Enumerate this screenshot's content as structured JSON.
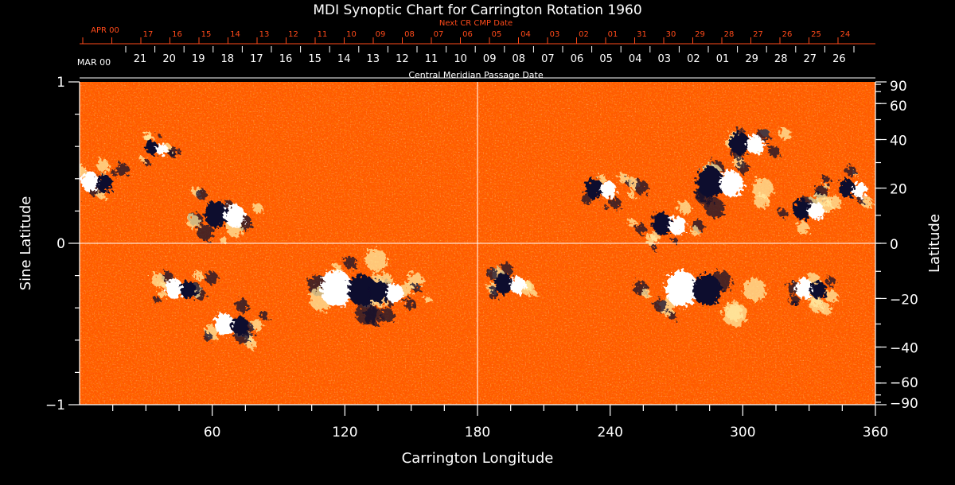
{
  "chart_data": {
    "type": "heatmap",
    "title": "MDI Synoptic Chart for Carrington Rotation 1960",
    "xlabel": "Carrington Longitude",
    "ylabel_left": "Sine Latitude",
    "ylabel_right": "Latitude",
    "xlim": [
      0,
      360
    ],
    "ylim": [
      -1,
      1
    ],
    "x_major_ticks": [
      60,
      120,
      180,
      240,
      300,
      360
    ],
    "x_minor_step": 15,
    "y_left_ticks": [
      {
        "value": 1,
        "label": "1"
      },
      {
        "value": 0,
        "label": "0"
      },
      {
        "value": -1,
        "label": "−1"
      }
    ],
    "y_right_ticks": [
      {
        "deg": 90,
        "label": "90"
      },
      {
        "deg": 60,
        "label": "60"
      },
      {
        "deg": 40,
        "label": "40"
      },
      {
        "deg": 20,
        "label": "20"
      },
      {
        "deg": 0,
        "label": "0"
      },
      {
        "deg": -20,
        "label": "−20"
      },
      {
        "deg": -40,
        "label": "−40"
      },
      {
        "deg": -60,
        "label": "−60"
      },
      {
        "deg": -90,
        "label": "−90"
      }
    ],
    "grid": {
      "vertical_at": 180,
      "horizontal_at": 0
    },
    "top_axes": {
      "next_cr_title": "Next CR CMP Date",
      "next_cr_month": "APR 00",
      "next_cr_days": [
        "17",
        "16",
        "15",
        "14",
        "13",
        "12",
        "11",
        "10",
        "09",
        "08",
        "07",
        "06",
        "05",
        "04",
        "03",
        "02",
        "01",
        "31",
        "30",
        "29",
        "28",
        "27",
        "26",
        "25",
        "24"
      ],
      "cmp_title": "Central Meridian Passage Date",
      "cmp_month": "MAR 00",
      "cmp_days": [
        "21",
        "20",
        "19",
        "18",
        "17",
        "16",
        "15",
        "14",
        "13",
        "12",
        "11",
        "10",
        "09",
        "08",
        "07",
        "06",
        "05",
        "04",
        "03",
        "02",
        "01",
        "29",
        "28",
        "27",
        "26"
      ]
    },
    "active_regions": [
      {
        "lon": 66,
        "slat": 0.18,
        "pos_first": false,
        "size": 1.3
      },
      {
        "lon": 8,
        "slat": 0.38,
        "pos_first": true,
        "size": 1.0
      },
      {
        "lon": 35,
        "slat": 0.59,
        "pos_first": false,
        "size": 0.7
      },
      {
        "lon": 46,
        "slat": -0.28,
        "pos_first": true,
        "size": 1.0
      },
      {
        "lon": 69,
        "slat": -0.5,
        "pos_first": true,
        "size": 1.1
      },
      {
        "lon": 122,
        "slat": -0.28,
        "pos_first": true,
        "size": 1.8
      },
      {
        "lon": 139,
        "slat": -0.3,
        "pos_first": false,
        "size": 1.1
      },
      {
        "lon": 195,
        "slat": -0.25,
        "pos_first": false,
        "size": 1.0
      },
      {
        "lon": 236,
        "slat": 0.34,
        "pos_first": false,
        "size": 1.0
      },
      {
        "lon": 278,
        "slat": -0.28,
        "pos_first": true,
        "size": 1.8
      },
      {
        "lon": 290,
        "slat": 0.38,
        "pos_first": false,
        "size": 1.5
      },
      {
        "lon": 302,
        "slat": 0.62,
        "pos_first": false,
        "size": 1.1
      },
      {
        "lon": 330,
        "slat": 0.21,
        "pos_first": false,
        "size": 1.0
      },
      {
        "lon": 350,
        "slat": 0.34,
        "pos_first": false,
        "size": 0.9
      },
      {
        "lon": 331,
        "slat": -0.28,
        "pos_first": true,
        "size": 1.0
      },
      {
        "lon": 267,
        "slat": 0.12,
        "pos_first": false,
        "size": 1.1
      }
    ],
    "colors": {
      "background": "#000000",
      "field_base": "#ff5a00",
      "positive": "#ffffff",
      "negative": "#0d0a2e",
      "axis": "#ffffff",
      "top_axis_accent": "#ff4a1a"
    }
  }
}
